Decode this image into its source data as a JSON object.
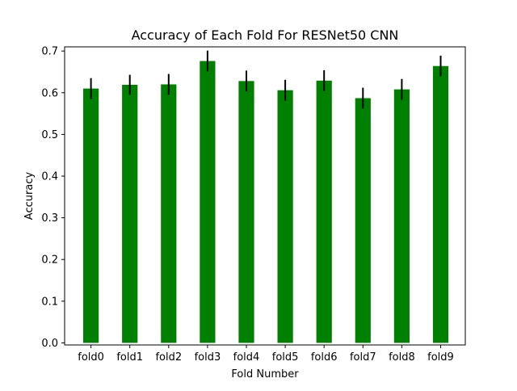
{
  "chart_data": {
    "type": "bar",
    "title": "Accuracy of Each Fold For RESNet50 CNN",
    "xlabel": "Fold Number",
    "ylabel": "Accuracy",
    "categories": [
      "fold0",
      "fold1",
      "fold2",
      "fold3",
      "fold4",
      "fold5",
      "fold6",
      "fold7",
      "fold8",
      "fold9"
    ],
    "values": [
      0.61,
      0.619,
      0.62,
      0.676,
      0.628,
      0.606,
      0.629,
      0.587,
      0.608,
      0.664
    ],
    "error": [
      0.025,
      0.024,
      0.025,
      0.025,
      0.025,
      0.025,
      0.025,
      0.025,
      0.025,
      0.025
    ],
    "ylim": [
      0,
      0.7
    ],
    "yticks": [
      0.0,
      0.1,
      0.2,
      0.3,
      0.4,
      0.5,
      0.6,
      0.7
    ],
    "ytick_labels": [
      "0.0",
      "0.1",
      "0.2",
      "0.3",
      "0.4",
      "0.5",
      "0.6",
      "0.7"
    ],
    "bar_color": "#008000",
    "error_color": "#000000",
    "grid": false,
    "legend": "none"
  }
}
